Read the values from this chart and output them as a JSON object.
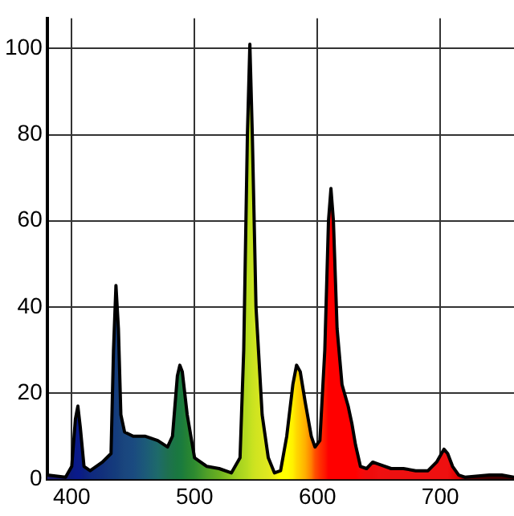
{
  "chart_data": {
    "type": "area",
    "x": [
      380,
      395,
      400,
      403,
      405,
      407,
      410,
      415,
      425,
      432,
      434,
      436,
      438,
      440,
      443,
      450,
      460,
      470,
      478,
      482,
      486,
      488,
      490,
      494,
      500,
      510,
      520,
      530,
      537,
      540,
      543,
      545,
      547,
      550,
      555,
      560,
      565,
      570,
      575,
      580,
      583,
      586,
      590,
      595,
      598,
      602,
      606,
      609,
      611,
      613,
      616,
      620,
      625,
      628,
      631,
      635,
      640,
      645,
      650,
      660,
      670,
      680,
      690,
      697,
      703,
      706,
      710,
      715,
      720,
      740,
      750,
      760
    ],
    "values": [
      1,
      0.5,
      3,
      14,
      17,
      12,
      3,
      2,
      4,
      6,
      30,
      45,
      35,
      15,
      11,
      10,
      10,
      9,
      7.5,
      10,
      24,
      26.5,
      25,
      15,
      5,
      3,
      2.5,
      1.5,
      5,
      30,
      80,
      101,
      80,
      40,
      15,
      5,
      1.5,
      2,
      10,
      22,
      26.5,
      25,
      18,
      10,
      7.5,
      9,
      30,
      60,
      67.5,
      60,
      35,
      22,
      17,
      13,
      8,
      3,
      2.5,
      4,
      3.5,
      2.5,
      2.5,
      2,
      2,
      4,
      7,
      6,
      3,
      1,
      0.5,
      1,
      1,
      0.5
    ],
    "colors": [
      "#1a1a6e",
      "#1a1a70",
      "#0a1a80",
      "#0a1a88",
      "#0a1a8a",
      "#0a1c88",
      "#0c2080",
      "#0e2880",
      "#12307c",
      "#14387c",
      "#143a7c",
      "#143c7c",
      "#163e7c",
      "#18427c",
      "#1a467e",
      "#1a4a80",
      "#1c5a78",
      "#1e6a6a",
      "#1e7050",
      "#1c7448",
      "#1a7840",
      "#1a7a40",
      "#1c7c3c",
      "#248234",
      "#2e8b30",
      "#50a028",
      "#6ab020",
      "#90c820",
      "#a8d420",
      "#b0d820",
      "#b8dc20",
      "#c0e020",
      "#c8e220",
      "#d0e420",
      "#d8e620",
      "#e0e820",
      "#f0f010",
      "#ffff00",
      "#ffff00",
      "#fff000",
      "#ffd800",
      "#ffc800",
      "#ffb000",
      "#ff8000",
      "#ff5000",
      "#ff3000",
      "#ff1800",
      "#ff0000",
      "#ff0000",
      "#ff0000",
      "#ff0000",
      "#ff0000",
      "#ff0000",
      "#ff0000",
      "#ff0000",
      "#f80808",
      "#f00c0c",
      "#f00c0c",
      "#f01010",
      "#ee1010",
      "#ee1010",
      "#ee1010",
      "#ee1010",
      "#ee1010",
      "#ee1010",
      "#ee1010",
      "#e80808",
      "#e00000",
      "#600000",
      "#400000",
      "#400000",
      "#400000"
    ],
    "xlim": [
      380,
      760
    ],
    "xticks": [
      400,
      500,
      600,
      700
    ],
    "ylim": [
      0,
      107
    ],
    "yticks": [
      0,
      20,
      40,
      60,
      80,
      100
    ],
    "grid": true
  }
}
